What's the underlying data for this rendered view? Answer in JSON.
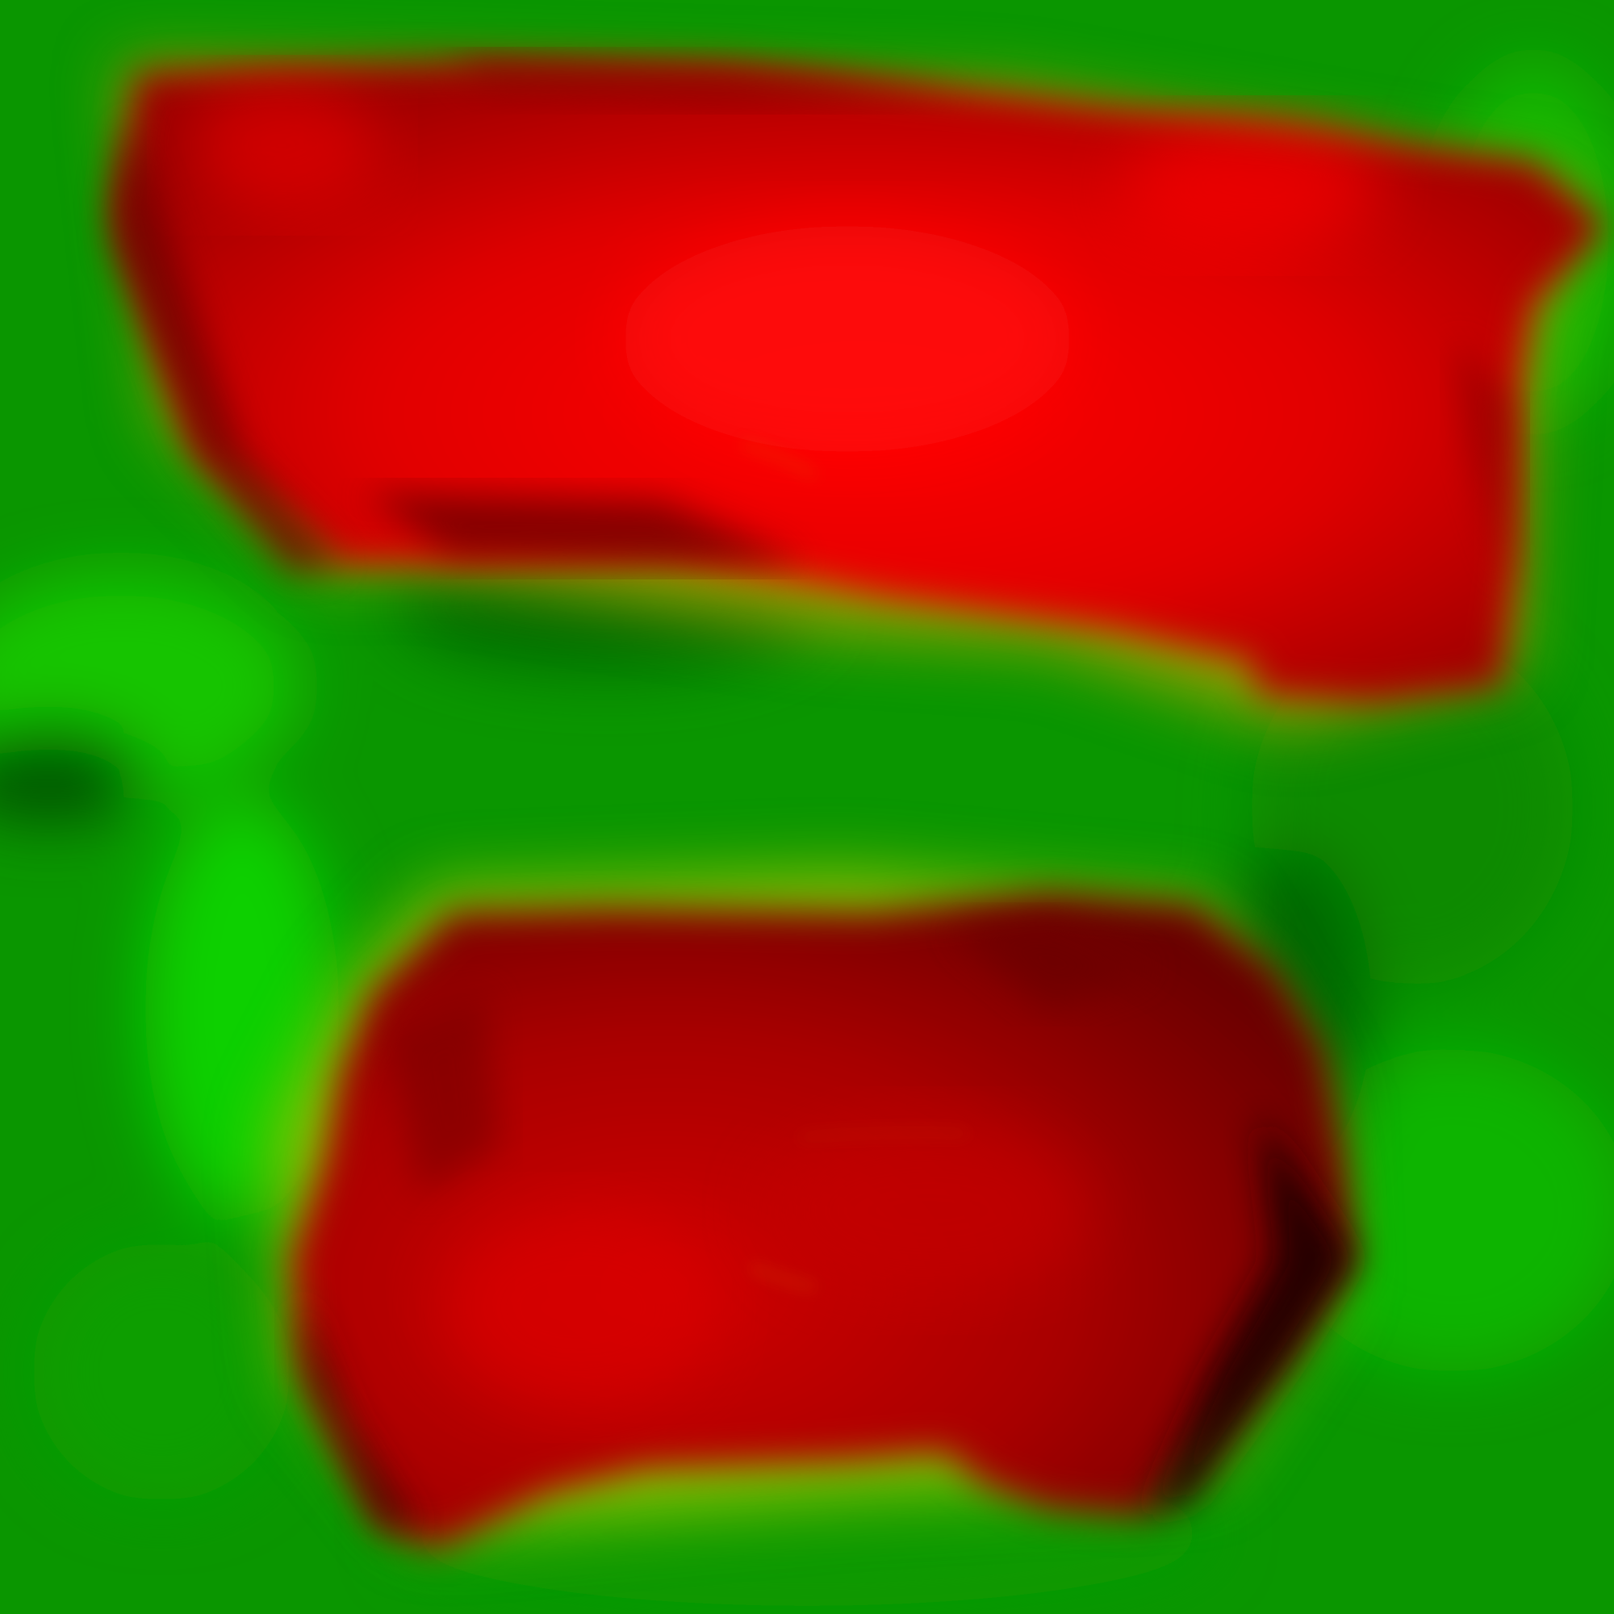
{
  "image": {
    "kind": "heatmap-like blurred color field",
    "regions": [
      {
        "name": "upper-red-region",
        "color": "#d40000"
      },
      {
        "name": "lower-red-region",
        "color": "#a80000"
      }
    ]
  },
  "colors": {
    "background_green": "#0a9a00",
    "bright_green": "#10c800",
    "dark_green": "#056000",
    "yellow_halo": "#a8c000",
    "orange_halo": "#c07800",
    "red_bright": "#ff0000",
    "red_mid": "#d00000",
    "red_dark": "#7a0000",
    "near_black": "#1a0000"
  }
}
